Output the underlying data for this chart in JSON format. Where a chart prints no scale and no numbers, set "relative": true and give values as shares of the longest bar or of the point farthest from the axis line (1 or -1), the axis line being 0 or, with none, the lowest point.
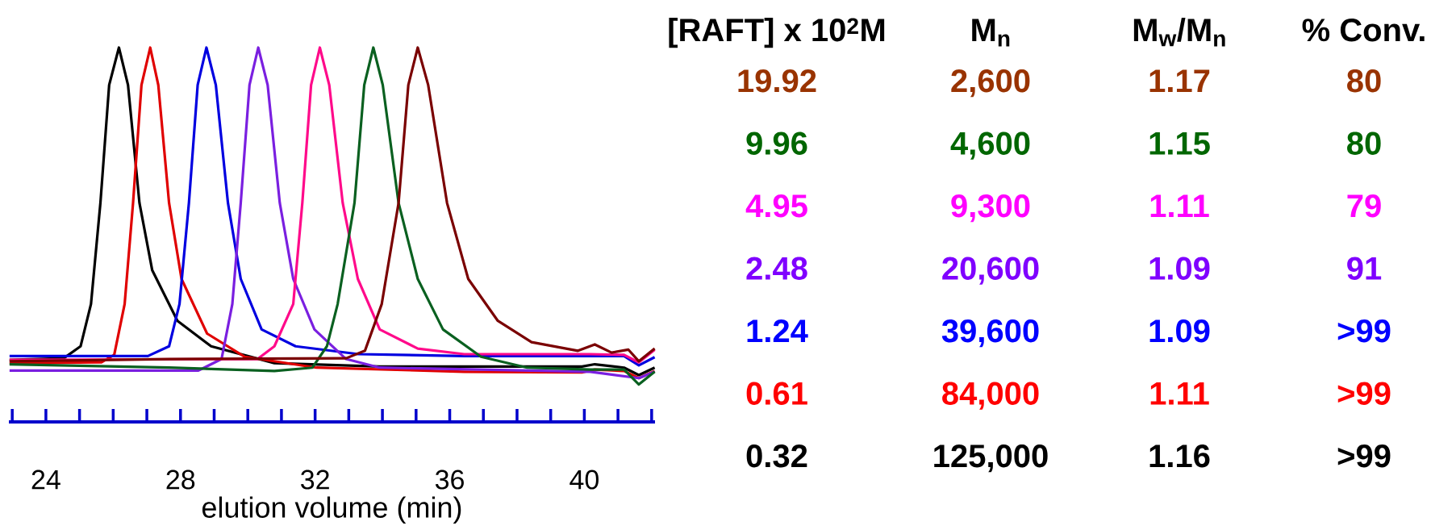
{
  "chart_data": [
    {
      "type": "line",
      "relative": true,
      "xlabel": "elution volume (min)",
      "xlim": [
        22.9,
        42.1
      ],
      "xticks": [
        {
          "value": 23,
          "label": null
        },
        24,
        {
          "value": 25,
          "label": null
        },
        {
          "value": 26,
          "label": null
        },
        {
          "value": 27,
          "label": null
        },
        28,
        {
          "value": 29,
          "label": null
        },
        {
          "value": 30,
          "label": null
        },
        {
          "value": 31,
          "label": null
        },
        32,
        {
          "value": 33,
          "label": null
        },
        {
          "value": 34,
          "label": null
        },
        {
          "value": 35,
          "label": null
        },
        36,
        {
          "value": 37,
          "label": null
        },
        {
          "value": 38,
          "label": null
        },
        {
          "value": 39,
          "label": null
        },
        40,
        {
          "value": 41,
          "label": null
        },
        {
          "value": 42,
          "label": null
        }
      ],
      "series": [
        {
          "color": "#000000",
          "x": [
            22.92,
            24.53,
            25.03,
            25.34,
            25.62,
            25.88,
            26.17,
            26.44,
            26.78,
            27.16,
            27.91,
            28.91,
            30.79,
            33.92,
            39.93,
            40.31,
            41.18,
            41.62,
            42.09
          ],
          "values": [
            0.166,
            0.17,
            0.202,
            0.315,
            0.585,
            0.9,
            1.0,
            0.9,
            0.585,
            0.405,
            0.27,
            0.202,
            0.157,
            0.148,
            0.148,
            0.154,
            0.145,
            0.125,
            0.145
          ]
        },
        {
          "color": "#e00000",
          "x": [
            22.92,
            25.65,
            26.03,
            26.34,
            26.59,
            26.84,
            27.1,
            27.34,
            27.66,
            28.03,
            28.79,
            29.91,
            32.04,
            36.43,
            39.93,
            40.31,
            41.18,
            41.62,
            42.09
          ],
          "values": [
            0.157,
            0.159,
            0.179,
            0.315,
            0.585,
            0.9,
            1.0,
            0.9,
            0.585,
            0.382,
            0.236,
            0.174,
            0.145,
            0.134,
            0.132,
            0.14,
            0.136,
            0.117,
            0.136
          ]
        },
        {
          "color": "#0000e0",
          "x": [
            22.92,
            27.03,
            27.66,
            27.97,
            28.25,
            28.51,
            28.77,
            29.05,
            29.41,
            29.79,
            30.41,
            31.42,
            33.29,
            36.43,
            41.18,
            41.62,
            42.09
          ],
          "values": [
            0.176,
            0.176,
            0.202,
            0.315,
            0.585,
            0.9,
            1.0,
            0.9,
            0.585,
            0.382,
            0.247,
            0.202,
            0.181,
            0.176,
            0.176,
            0.151,
            0.173
          ]
        },
        {
          "color": "#7a1fe0",
          "x": [
            22.92,
            28.53,
            29.22,
            29.54,
            29.79,
            30.05,
            30.31,
            30.59,
            30.95,
            31.35,
            31.98,
            32.92,
            33.92,
            40.18,
            41.62,
            42.09
          ],
          "values": [
            0.137,
            0.137,
            0.168,
            0.315,
            0.585,
            0.9,
            1.0,
            0.9,
            0.585,
            0.382,
            0.247,
            0.168,
            0.145,
            0.134,
            0.117,
            0.134
          ]
        },
        {
          "color": "#ff0a8a",
          "x": [
            22.92,
            30.29,
            30.79,
            31.35,
            31.62,
            31.88,
            32.14,
            32.42,
            32.82,
            33.27,
            33.92,
            35.05,
            36.43,
            40.18,
            41.18,
            41.62,
            42.09
          ],
          "values": [
            0.166,
            0.168,
            0.202,
            0.315,
            0.585,
            0.9,
            1.0,
            0.9,
            0.585,
            0.382,
            0.247,
            0.196,
            0.181,
            0.181,
            0.179,
            0.159,
            0.193
          ]
        },
        {
          "color": "#0a6020",
          "x": [
            22.92,
            27.66,
            30.79,
            31.92,
            32.35,
            32.67,
            33.17,
            33.46,
            33.73,
            34.01,
            34.48,
            35.05,
            35.8,
            36.93,
            38.3,
            40.18,
            41.18,
            41.62,
            42.09
          ],
          "values": [
            0.154,
            0.145,
            0.136,
            0.145,
            0.202,
            0.315,
            0.585,
            0.9,
            1.0,
            0.9,
            0.585,
            0.382,
            0.247,
            0.174,
            0.145,
            0.14,
            0.14,
            0.1,
            0.134
          ]
        },
        {
          "color": "#7a0000",
          "x": [
            22.92,
            27.66,
            32.92,
            33.48,
            33.98,
            34.48,
            34.77,
            35.05,
            35.36,
            35.92,
            36.55,
            37.43,
            38.43,
            39.81,
            40.31,
            40.81,
            41.31,
            41.62,
            42.09
          ],
          "values": [
            0.162,
            0.168,
            0.17,
            0.19,
            0.315,
            0.585,
            0.9,
            1.0,
            0.9,
            0.585,
            0.382,
            0.27,
            0.213,
            0.19,
            0.207,
            0.185,
            0.193,
            0.162,
            0.196
          ]
        }
      ]
    },
    {
      "type": "other",
      "categories": [
        "[RAFT] x 10$^{2}$M",
        "M$_{n}$",
        "M$_{w}$/M$_{n}$",
        "% Conv."
      ],
      "series": [
        {
          "color": "#993300",
          "values": [
            19.92,
            2600,
            1.17,
            80
          ],
          "value_labels": [
            "19.92",
            "2,600",
            "1.17",
            "80"
          ]
        },
        {
          "color": "#006600",
          "values": [
            9.96,
            4600,
            1.15,
            80
          ],
          "value_labels": [
            "9.96",
            "4,600",
            "1.15",
            "80"
          ]
        },
        {
          "color": "#ff00ff",
          "values": [
            4.95,
            9300,
            1.11,
            79
          ],
          "value_labels": [
            "4.95",
            "9,300",
            "1.11",
            "79"
          ]
        },
        {
          "color": "#7f00ff",
          "values": [
            2.48,
            20600,
            1.09,
            91
          ],
          "value_labels": [
            "2.48",
            "20,600",
            "1.09",
            "91"
          ]
        },
        {
          "color": "#0000ff",
          "values": [
            1.24,
            39600,
            1.09,
            null
          ],
          "value_labels": [
            "1.24",
            "39,600",
            "1.09",
            ">99"
          ]
        },
        {
          "color": "#ff0000",
          "values": [
            0.61,
            84000,
            1.11,
            null
          ],
          "value_labels": [
            "0.61",
            "84,000",
            "1.11",
            ">99"
          ]
        },
        {
          "color": "#000000",
          "values": [
            0.32,
            125000,
            1.16,
            null
          ],
          "value_labels": [
            "0.32",
            "125,000",
            "1.16",
            ">99"
          ]
        }
      ]
    }
  ]
}
